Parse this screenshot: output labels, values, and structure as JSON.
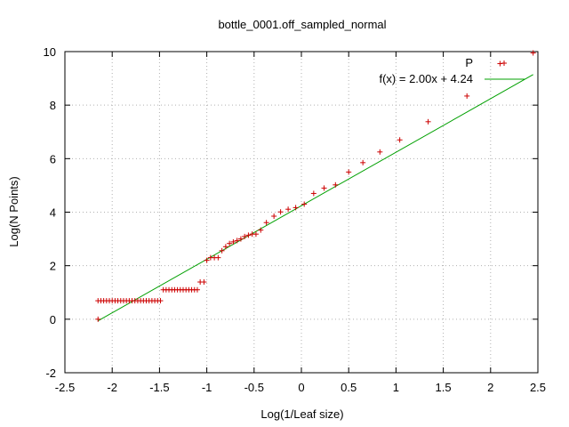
{
  "chart_data": {
    "type": "scatter",
    "title": "bottle_0001.off_sampled_normal",
    "xlabel": "Log(1/Leaf size)",
    "ylabel": "Log(N Points)",
    "xlim": [
      -2.5,
      2.5
    ],
    "ylim": [
      -2,
      10
    ],
    "xticks": [
      "-2.5",
      "-2",
      "-1.5",
      "-1",
      "-0.5",
      "0",
      "0.5",
      "1",
      "1.5",
      "2",
      "2.5"
    ],
    "yticks": [
      "-2",
      "0",
      "2",
      "4",
      "6",
      "8",
      "10"
    ],
    "grid": true,
    "legend_position": "top-right",
    "series": [
      {
        "name": "P",
        "kind": "points",
        "marker": "+",
        "color": "#cc0000",
        "x": [
          -2.15,
          -2.12,
          -2.09,
          -2.06,
          -2.03,
          -2.0,
          -1.97,
          -1.94,
          -1.91,
          -1.88,
          -1.85,
          -1.82,
          -1.79,
          -1.76,
          -1.73,
          -1.7,
          -1.67,
          -1.64,
          -1.61,
          -1.58,
          -1.55,
          -1.52,
          -1.49,
          -1.46,
          -1.43,
          -1.4,
          -1.37,
          -1.34,
          -1.31,
          -1.28,
          -1.25,
          -1.22,
          -1.19,
          -1.16,
          -1.13,
          -1.1,
          -1.07,
          -1.03,
          -1.0,
          -0.96,
          -0.92,
          -0.88,
          -0.84,
          -0.8,
          -0.76,
          -0.72,
          -0.68,
          -0.64,
          -0.6,
          -0.56,
          -0.52,
          -0.48,
          -0.43,
          -0.37,
          -0.29,
          -0.22,
          -0.14,
          -0.06,
          0.03,
          0.13,
          0.24,
          0.36,
          0.5,
          0.65,
          0.83,
          1.04,
          1.34,
          1.75,
          2.1,
          2.45
        ],
        "y": [
          0.69,
          0.69,
          0.69,
          0.69,
          0.69,
          0.69,
          0.69,
          0.69,
          0.69,
          0.69,
          0.69,
          0.69,
          0.69,
          0.69,
          0.69,
          0.69,
          0.69,
          0.69,
          0.69,
          0.69,
          0.69,
          0.69,
          0.69,
          1.1,
          1.1,
          1.1,
          1.1,
          1.1,
          1.1,
          1.1,
          1.1,
          1.1,
          1.1,
          1.1,
          1.1,
          1.1,
          1.39,
          1.39,
          2.2,
          2.3,
          2.3,
          2.3,
          2.56,
          2.71,
          2.83,
          2.89,
          2.94,
          3.0,
          3.09,
          3.14,
          3.18,
          3.18,
          3.33,
          3.61,
          3.85,
          4.01,
          4.11,
          4.17,
          4.3,
          4.7,
          4.9,
          5.02,
          5.5,
          5.85,
          6.25,
          6.7,
          7.38,
          8.34,
          9.55,
          9.95
        ],
        "extra_points": [
          {
            "x": -2.15,
            "y": 0.0
          }
        ]
      },
      {
        "name": "f(x) = 2.00x + 4.24",
        "kind": "line",
        "color": "#00a000",
        "slope": 2.0,
        "intercept": 4.24,
        "x_range": [
          -2.15,
          2.45
        ]
      }
    ]
  }
}
